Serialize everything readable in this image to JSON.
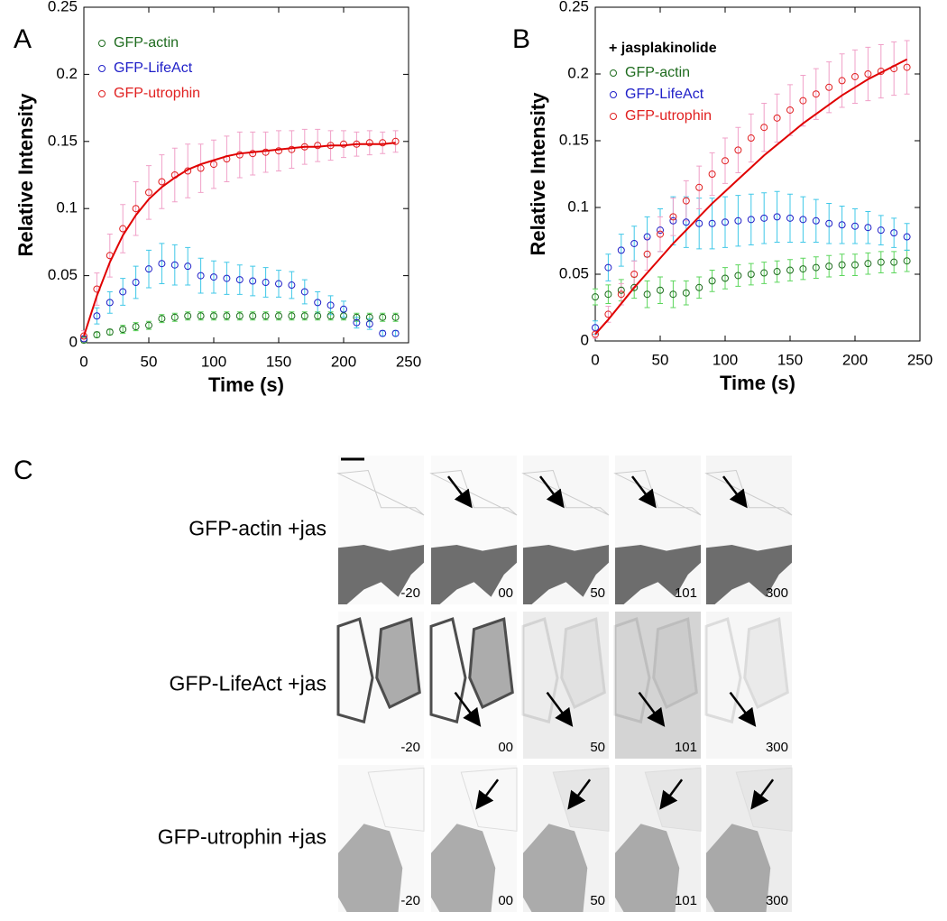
{
  "chart_data": [
    {
      "type": "scatter",
      "panel": "A",
      "x_label": "Time (s)",
      "y_label": "Relative Intensity",
      "x": [
        0,
        10,
        20,
        30,
        40,
        50,
        60,
        70,
        80,
        90,
        100,
        110,
        120,
        130,
        140,
        150,
        160,
        170,
        180,
        190,
        200,
        210,
        220,
        230,
        240
      ],
      "xlim": [
        0,
        250
      ],
      "xticks": [
        0,
        50,
        100,
        150,
        200,
        250
      ],
      "ylim": [
        0,
        0.25
      ],
      "yticks": [
        0,
        0.05,
        0.1,
        0.15,
        0.2,
        0.25
      ],
      "series": [
        {
          "name": "GFP-actin",
          "color": "#1e6b1e",
          "error_color": "#5cd65c",
          "values": [
            0.002,
            0.006,
            0.008,
            0.01,
            0.012,
            0.013,
            0.018,
            0.019,
            0.02,
            0.02,
            0.02,
            0.02,
            0.02,
            0.02,
            0.02,
            0.02,
            0.02,
            0.02,
            0.02,
            0.02,
            0.02,
            0.019,
            0.019,
            0.019,
            0.019
          ],
          "errors": [
            0.002,
            0.002,
            0.002,
            0.003,
            0.003,
            0.003,
            0.003,
            0.003,
            0.003,
            0.003,
            0.003,
            0.003,
            0.003,
            0.003,
            0.003,
            0.003,
            0.003,
            0.003,
            0.003,
            0.003,
            0.003,
            0.003,
            0.003,
            0.003,
            0.003
          ]
        },
        {
          "name": "GFP-LifeAct",
          "color": "#2020c8",
          "error_color": "#40c8e8",
          "values": [
            0.003,
            0.02,
            0.03,
            0.038,
            0.045,
            0.055,
            0.059,
            0.058,
            0.057,
            0.05,
            0.049,
            0.048,
            0.047,
            0.046,
            0.045,
            0.044,
            0.043,
            0.038,
            0.03,
            0.028,
            0.025,
            0.015,
            0.014,
            0.007,
            0.007
          ],
          "errors": [
            0.002,
            0.006,
            0.008,
            0.01,
            0.012,
            0.014,
            0.015,
            0.015,
            0.014,
            0.013,
            0.012,
            0.012,
            0.011,
            0.011,
            0.011,
            0.01,
            0.01,
            0.009,
            0.008,
            0.007,
            0.006,
            0.004,
            0.004,
            0.002,
            0.002
          ]
        },
        {
          "name": "GFP-utrophin",
          "color": "#e02020",
          "error_color": "#f0a0c8",
          "values": [
            0.005,
            0.04,
            0.065,
            0.085,
            0.1,
            0.112,
            0.12,
            0.125,
            0.128,
            0.13,
            0.133,
            0.137,
            0.14,
            0.141,
            0.142,
            0.143,
            0.144,
            0.146,
            0.147,
            0.147,
            0.148,
            0.148,
            0.149,
            0.149,
            0.15
          ],
          "errors": [
            0.004,
            0.012,
            0.016,
            0.018,
            0.02,
            0.02,
            0.02,
            0.02,
            0.02,
            0.018,
            0.018,
            0.017,
            0.017,
            0.016,
            0.015,
            0.015,
            0.014,
            0.013,
            0.012,
            0.011,
            0.01,
            0.009,
            0.009,
            0.008,
            0.008
          ]
        }
      ],
      "fit_line": {
        "color": "#e00000",
        "values": [
          0.005,
          0.035,
          0.06,
          0.08,
          0.095,
          0.107,
          0.116,
          0.123,
          0.129,
          0.133,
          0.136,
          0.139,
          0.141,
          0.142,
          0.143,
          0.144,
          0.145,
          0.146,
          0.146,
          0.147,
          0.147,
          0.148,
          0.148,
          0.148,
          0.149
        ]
      }
    },
    {
      "type": "scatter",
      "panel": "B",
      "x_label": "Time (s)",
      "y_label": "Relative Intensity",
      "annotation": "+ jasplakinolide",
      "x": [
        0,
        10,
        20,
        30,
        40,
        50,
        60,
        70,
        80,
        90,
        100,
        110,
        120,
        130,
        140,
        150,
        160,
        170,
        180,
        190,
        200,
        210,
        220,
        230,
        240
      ],
      "xlim": [
        0,
        250
      ],
      "xticks": [
        0,
        50,
        100,
        150,
        200,
        250
      ],
      "ylim": [
        0,
        0.25
      ],
      "yticks": [
        0,
        0.05,
        0.1,
        0.15,
        0.2,
        0.25
      ],
      "series": [
        {
          "name": "GFP-actin",
          "color": "#1e6b1e",
          "error_color": "#5cd65c",
          "values": [
            0.033,
            0.035,
            0.038,
            0.04,
            0.035,
            0.038,
            0.035,
            0.036,
            0.04,
            0.045,
            0.047,
            0.049,
            0.05,
            0.051,
            0.052,
            0.053,
            0.054,
            0.055,
            0.056,
            0.057,
            0.057,
            0.058,
            0.059,
            0.059,
            0.06
          ],
          "errors": [
            0.006,
            0.007,
            0.008,
            0.008,
            0.01,
            0.01,
            0.01,
            0.009,
            0.008,
            0.008,
            0.008,
            0.008,
            0.008,
            0.008,
            0.008,
            0.008,
            0.008,
            0.008,
            0.008,
            0.008,
            0.008,
            0.008,
            0.008,
            0.008,
            0.008
          ]
        },
        {
          "name": "GFP-LifeAct",
          "color": "#2020c8",
          "error_color": "#40c8e8",
          "values": [
            0.01,
            0.055,
            0.068,
            0.073,
            0.078,
            0.083,
            0.09,
            0.089,
            0.088,
            0.088,
            0.089,
            0.09,
            0.091,
            0.092,
            0.093,
            0.092,
            0.091,
            0.09,
            0.088,
            0.087,
            0.086,
            0.085,
            0.083,
            0.081,
            0.078
          ],
          "errors": [
            0.005,
            0.01,
            0.012,
            0.013,
            0.015,
            0.016,
            0.018,
            0.019,
            0.019,
            0.019,
            0.019,
            0.019,
            0.019,
            0.019,
            0.019,
            0.018,
            0.017,
            0.016,
            0.015,
            0.014,
            0.013,
            0.012,
            0.011,
            0.011,
            0.01
          ]
        },
        {
          "name": "GFP-utrophin",
          "color": "#e02020",
          "error_color": "#f0a0c8",
          "values": [
            0.005,
            0.02,
            0.035,
            0.05,
            0.065,
            0.08,
            0.093,
            0.105,
            0.115,
            0.125,
            0.135,
            0.143,
            0.152,
            0.16,
            0.167,
            0.173,
            0.18,
            0.185,
            0.19,
            0.195,
            0.198,
            0.2,
            0.202,
            0.204,
            0.205
          ],
          "errors": [
            0.003,
            0.006,
            0.008,
            0.01,
            0.012,
            0.013,
            0.014,
            0.015,
            0.016,
            0.016,
            0.017,
            0.017,
            0.018,
            0.018,
            0.018,
            0.019,
            0.019,
            0.019,
            0.019,
            0.02,
            0.02,
            0.02,
            0.02,
            0.02,
            0.02
          ]
        }
      ],
      "fit_line": {
        "color": "#e00000",
        "values": [
          0.005,
          0.016,
          0.028,
          0.04,
          0.051,
          0.062,
          0.073,
          0.083,
          0.093,
          0.103,
          0.112,
          0.121,
          0.13,
          0.139,
          0.147,
          0.155,
          0.163,
          0.17,
          0.177,
          0.184,
          0.19,
          0.196,
          0.201,
          0.206,
          0.211
        ]
      }
    }
  ],
  "panel_c": {
    "label": "C",
    "rows": [
      "GFP-actin +jas",
      "GFP-LifeAct +jas",
      "GFP-utrophin +jas"
    ],
    "timepoints": [
      "-20",
      "00",
      "50",
      "101",
      "300"
    ]
  }
}
